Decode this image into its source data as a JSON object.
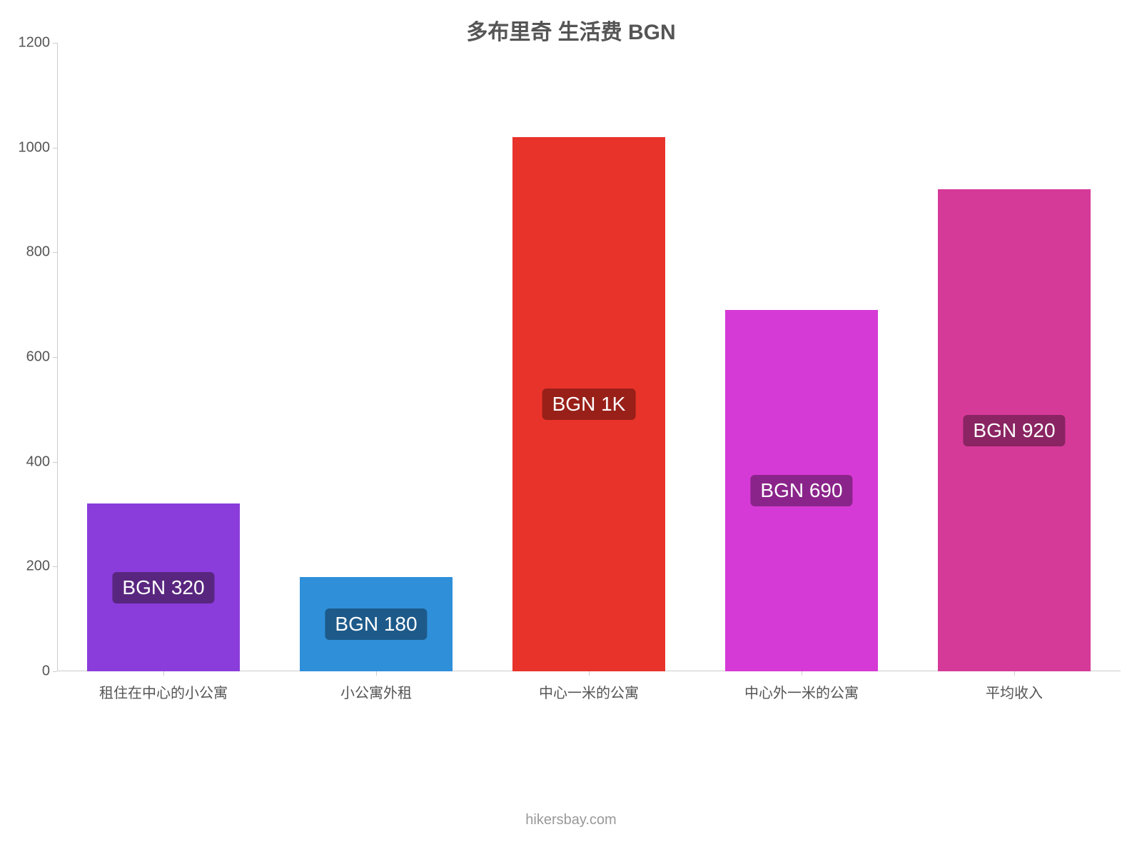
{
  "chart": {
    "type": "bar",
    "title": "多布里奇 生活费 BGN",
    "title_fontsize": 30,
    "title_color": "#555555",
    "background_color": "#ffffff",
    "axis_color": "#cccccc",
    "tick_label_color": "#555555",
    "tick_label_fontsize": 20,
    "xcat_fontsize": 20,
    "ylim": [
      0,
      1200
    ],
    "ytick_step": 200,
    "yticks": [
      0,
      200,
      400,
      600,
      800,
      1000,
      1200
    ],
    "ytick_labels": [
      "0",
      "200",
      "400",
      "600",
      "800",
      "1000",
      "1200"
    ],
    "bar_width_ratio": 0.72,
    "categories": [
      {
        "label": "租住在中心的小公寓",
        "value": 320,
        "value_label": "BGN 320",
        "bar_color": "#8a3ddb",
        "badge_bg": "#59267f"
      },
      {
        "label": "小公寓外租",
        "value": 180,
        "value_label": "BGN 180",
        "bar_color": "#2f8fd9",
        "badge_bg": "#1d5a8a"
      },
      {
        "label": "中心一米的公寓",
        "value": 1020,
        "value_label": "BGN 1K",
        "bar_color": "#e8332b",
        "badge_bg": "#982018"
      },
      {
        "label": "中心外一米的公寓",
        "value": 690,
        "value_label": "BGN 690",
        "bar_color": "#d63ad6",
        "badge_bg": "#8a248a"
      },
      {
        "label": "平均收入",
        "value": 920,
        "value_label": "BGN 920",
        "bar_color": "#d63a99",
        "badge_bg": "#8a2462"
      }
    ],
    "badge_fontsize": 28,
    "badge_text_color": "#ffffff"
  },
  "footer": {
    "credit": "hikersbay.com",
    "fontsize": 20,
    "color": "#999999"
  }
}
